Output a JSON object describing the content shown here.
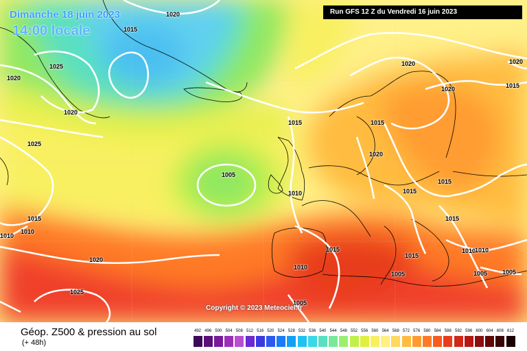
{
  "header": {
    "date_label": "Dimanche 18 juin 2023",
    "time_label": "14:00 locale",
    "run_label": "Run GFS 12 Z du Vendredi 16 juin 2023"
  },
  "copyright": "Copyright © 2023 Meteociel.fr",
  "footer": {
    "title": "Géop. Z500 & pression au sol",
    "subtitle": "(+ 48h)"
  },
  "pressure_labels": [
    {
      "id": "p1",
      "text": "1020"
    },
    {
      "id": "p2",
      "text": "1015"
    },
    {
      "id": "p3",
      "text": "1025"
    },
    {
      "id": "p4",
      "text": "1020"
    },
    {
      "id": "p5",
      "text": "1020"
    },
    {
      "id": "p6",
      "text": "1025"
    },
    {
      "id": "p7",
      "text": "1015"
    },
    {
      "id": "p8",
      "text": "1010"
    },
    {
      "id": "p9",
      "text": "1010"
    },
    {
      "id": "p10",
      "text": "1020"
    },
    {
      "id": "p11",
      "text": "1025"
    },
    {
      "id": "p12",
      "text": "1005"
    },
    {
      "id": "p13",
      "text": "1010"
    },
    {
      "id": "p14",
      "text": "1015"
    },
    {
      "id": "p15",
      "text": "1015"
    },
    {
      "id": "p16",
      "text": "1020"
    },
    {
      "id": "p17",
      "text": "1020"
    },
    {
      "id": "p18",
      "text": "1020"
    },
    {
      "id": "p19",
      "text": "1020"
    },
    {
      "id": "p20",
      "text": "1015"
    },
    {
      "id": "p21",
      "text": "1015"
    },
    {
      "id": "p22",
      "text": "1015"
    },
    {
      "id": "p23",
      "text": "1015"
    },
    {
      "id": "p24",
      "text": "1015"
    },
    {
      "id": "p25",
      "text": "1015"
    },
    {
      "id": "p26",
      "text": "1010"
    },
    {
      "id": "p27",
      "text": "1010"
    },
    {
      "id": "p28",
      "text": "1010"
    },
    {
      "id": "p29",
      "text": "1005"
    },
    {
      "id": "p30",
      "text": "1005"
    },
    {
      "id": "p31",
      "text": "1005"
    },
    {
      "id": "p32",
      "text": "1005"
    }
  ],
  "scale": {
    "ticks": [
      "492",
      "496",
      "500",
      "504",
      "508",
      "512",
      "516",
      "520",
      "524",
      "528",
      "532",
      "536",
      "540",
      "544",
      "548",
      "552",
      "556",
      "560",
      "564",
      "568",
      "572",
      "576",
      "580",
      "584",
      "588",
      "592",
      "596",
      "600",
      "604",
      "608",
      "612"
    ],
    "colors": [
      "#3b0a57",
      "#5a1078",
      "#7a1a9a",
      "#9c2fb8",
      "#b84fd0",
      "#6a2bd0",
      "#3a3ae0",
      "#2c5af0",
      "#1a7cf5",
      "#11a0f5",
      "#1ec2f0",
      "#3ad8e8",
      "#5ae0c0",
      "#7ae89a",
      "#9af06e",
      "#c0f04a",
      "#e0f040",
      "#f8f060",
      "#fff080",
      "#ffd860",
      "#ffbc40",
      "#ff9c30",
      "#ff7a26",
      "#f85a20",
      "#e83c1c",
      "#d02818",
      "#b41814",
      "#8a0f10",
      "#600808",
      "#3a0404",
      "#1a0000"
    ]
  },
  "map_colors": {
    "ocean_deep_blue": "#4cc0f0",
    "light_blue": "#80d8f0",
    "cyan": "#60e0c8",
    "green": "#90e860",
    "lime": "#c8f040",
    "yellow": "#f8f060",
    "pale_yellow": "#fff088",
    "orange": "#ffc040",
    "dark_orange": "#ff9a30",
    "red_orange": "#ff6a2a",
    "red": "#f0402a"
  }
}
